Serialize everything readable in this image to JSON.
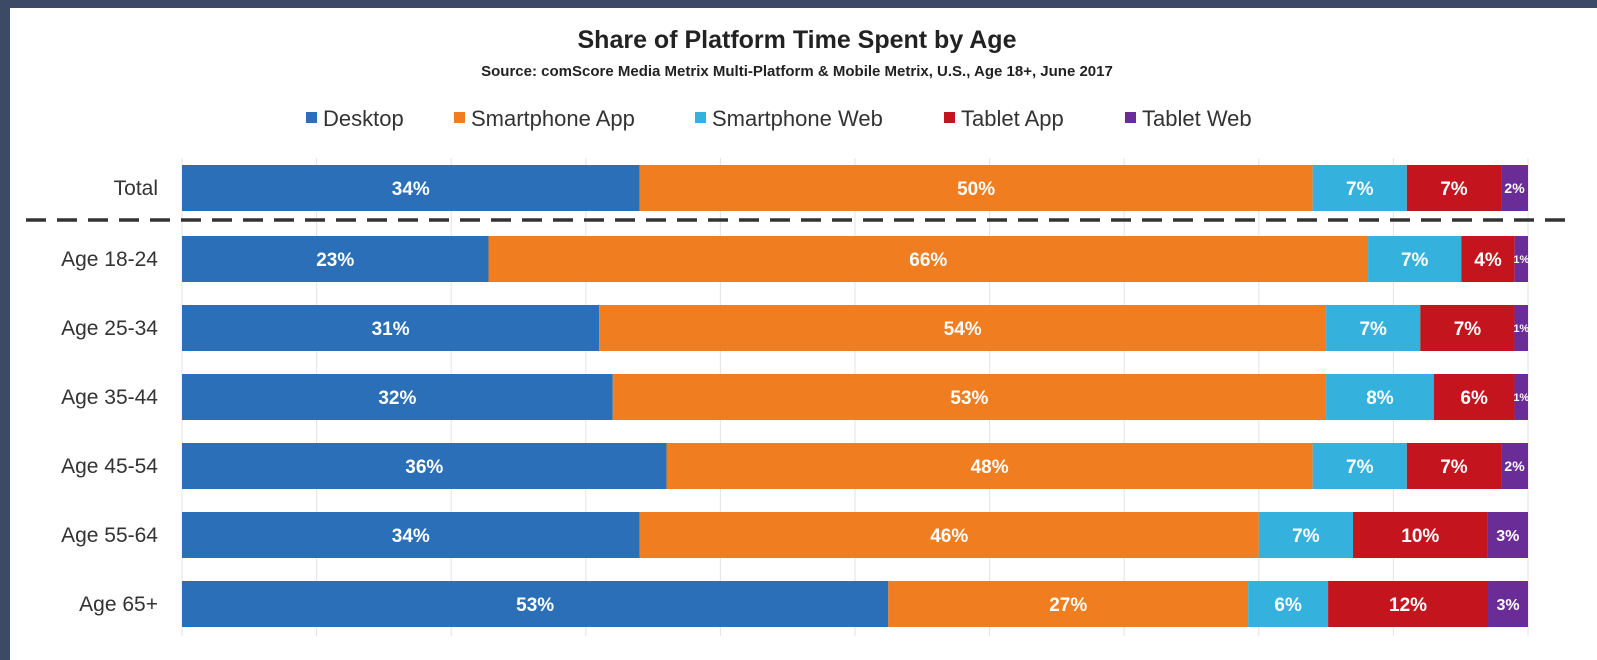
{
  "chart_data": {
    "type": "bar",
    "orientation": "horizontal",
    "stacked": true,
    "percent": true,
    "title": "Share of Platform Time Spent by Age",
    "subtitle": "Source: comScore Media Metrix Multi-Platform & Mobile Metrix, U.S., Age 18+, June 2017",
    "categories": [
      "Total",
      "Age 18-24",
      "Age 25-34",
      "Age 35-44",
      "Age 45-54",
      "Age 55-64",
      "Age 65+"
    ],
    "series": [
      {
        "name": "Desktop",
        "color": "#2a6fb7",
        "values": [
          34,
          23,
          31,
          32,
          36,
          34,
          53
        ]
      },
      {
        "name": "Smartphone App",
        "color": "#f07d1f",
        "values": [
          50,
          66,
          54,
          53,
          48,
          46,
          27
        ]
      },
      {
        "name": "Smartphone Web",
        "color": "#34b2dd",
        "values": [
          7,
          7,
          7,
          8,
          7,
          7,
          6
        ]
      },
      {
        "name": "Tablet App",
        "color": "#c4141e",
        "values": [
          7,
          4,
          7,
          6,
          7,
          10,
          12
        ]
      },
      {
        "name": "Tablet Web",
        "color": "#6a2c96",
        "values": [
          2,
          1,
          1,
          1,
          2,
          3,
          3
        ]
      }
    ],
    "legend_position": "top",
    "grid": true,
    "separator_after": "Total"
  }
}
